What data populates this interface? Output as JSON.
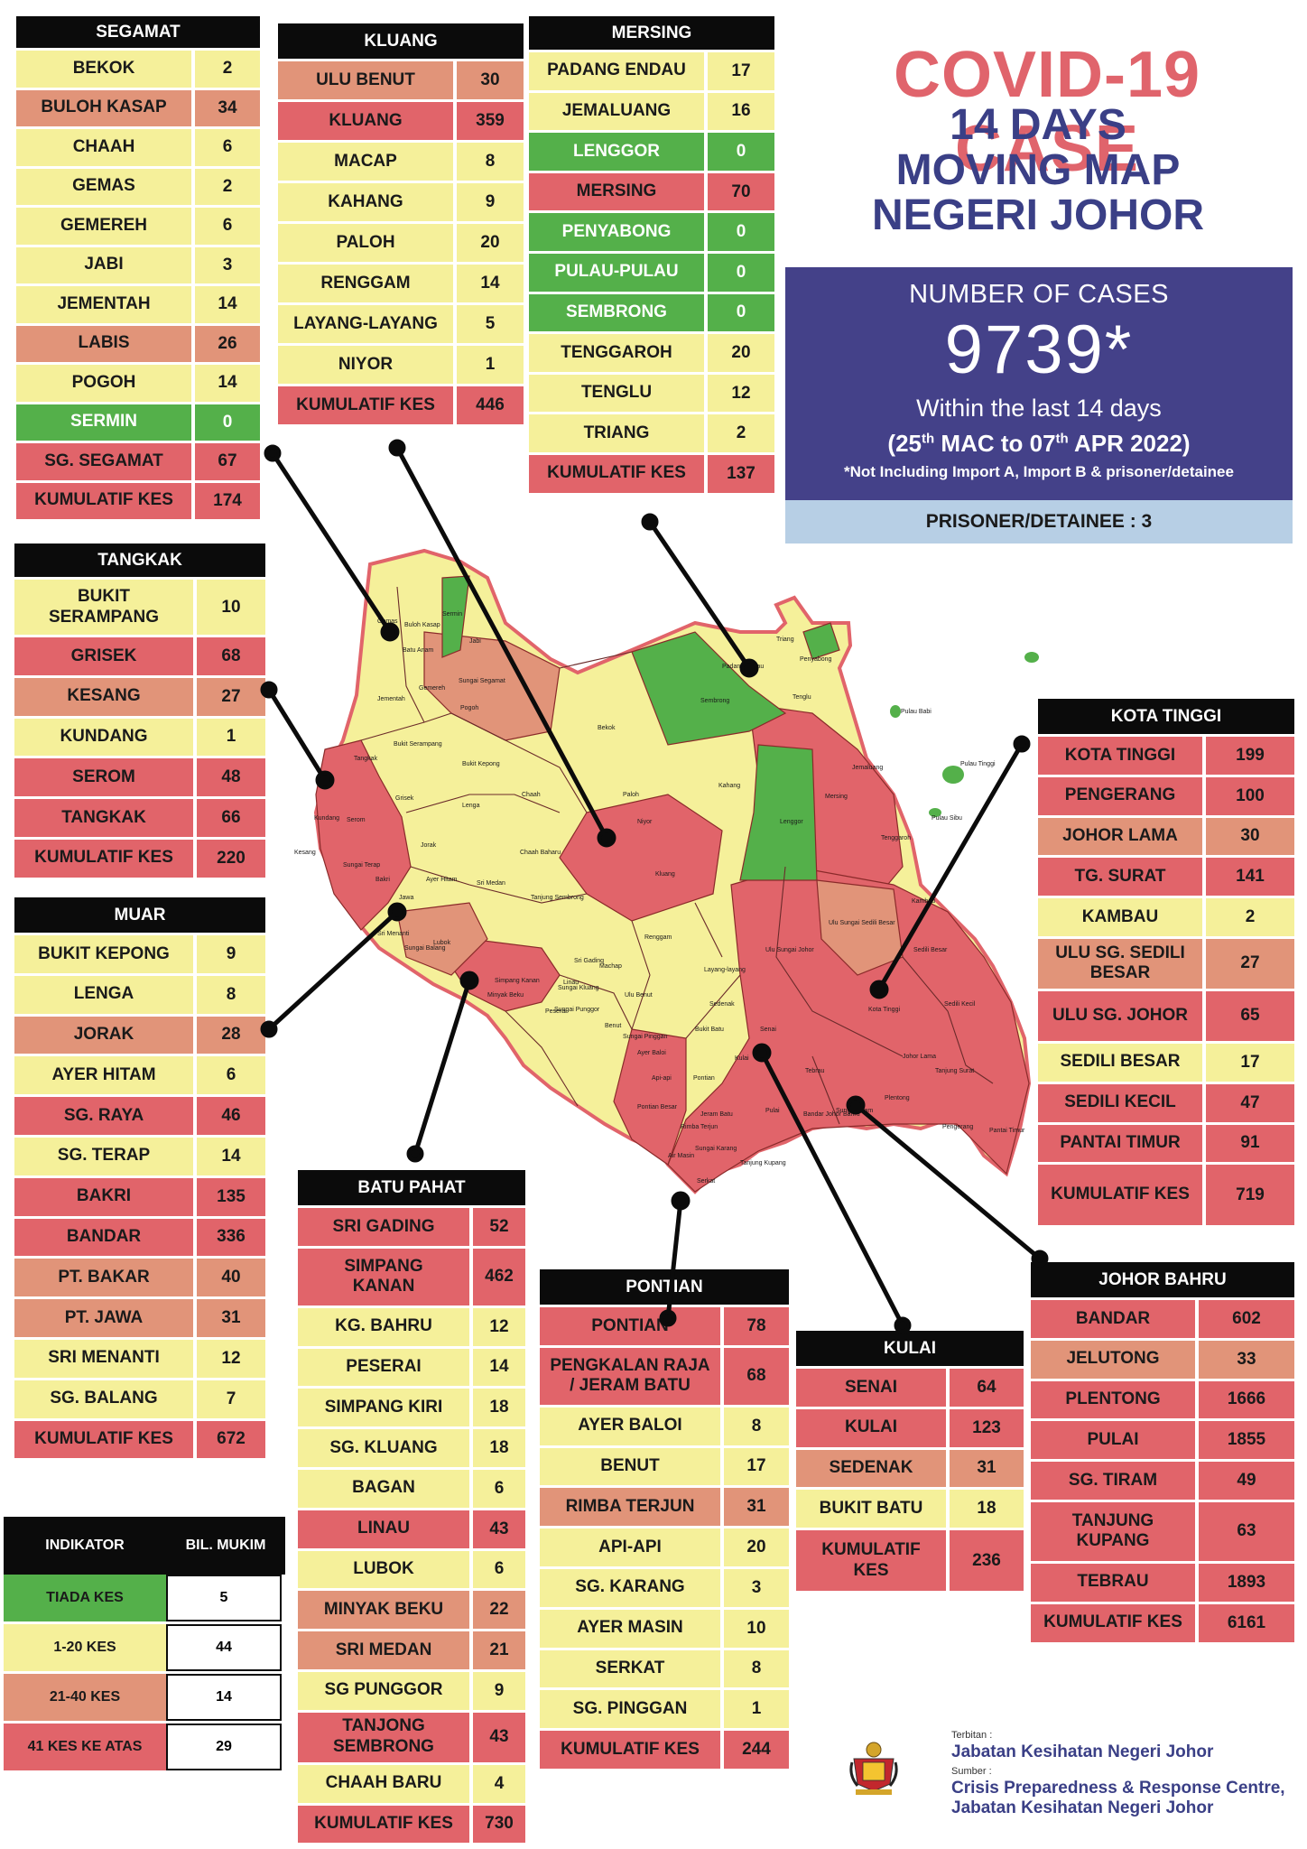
{
  "header": {
    "title": "COVID-19 CASE",
    "subtitle_lines": [
      "14 DAYS",
      "MOVING MAP",
      "NEGERI JOHOR"
    ]
  },
  "cases_box": {
    "label": "NUMBER OF CASES",
    "value": "9739*",
    "within": "Within the last 14 days",
    "range_start_day": "25",
    "range_start_sup": "th",
    "range_mid": " MAC to 07",
    "range_end_sup": "th",
    "range_end": " APR 2022)",
    "range_open": "(",
    "note": "*Not Including Import A, Import B & prisoner/detainee"
  },
  "prisoner": "PRISONER/DETAINEE : 3",
  "colors": {
    "green": "#54b04a",
    "yellow": "#f5f09a",
    "orange": "#e19479",
    "red": "#e1646a",
    "navy": "#444189",
    "title_red": "#e0646c"
  },
  "districts": {
    "segamat": {
      "name": "SEGAMAT",
      "rows": [
        {
          "n": "BEKOK",
          "v": "2",
          "c": "y"
        },
        {
          "n": "BULOH KASAP",
          "v": "34",
          "c": "o"
        },
        {
          "n": "CHAAH",
          "v": "6",
          "c": "y"
        },
        {
          "n": "GEMAS",
          "v": "2",
          "c": "y"
        },
        {
          "n": "GEMEREH",
          "v": "6",
          "c": "y"
        },
        {
          "n": "JABI",
          "v": "3",
          "c": "y"
        },
        {
          "n": "JEMENTAH",
          "v": "14",
          "c": "y"
        },
        {
          "n": "LABIS",
          "v": "26",
          "c": "o"
        },
        {
          "n": "POGOH",
          "v": "14",
          "c": "y"
        },
        {
          "n": "SERMIN",
          "v": "0",
          "c": "g"
        },
        {
          "n": "SG. SEGAMAT",
          "v": "67",
          "c": "r"
        },
        {
          "n": "KUMULATIF KES",
          "v": "174",
          "c": "r"
        }
      ]
    },
    "kluang": {
      "name": "KLUANG",
      "rows": [
        {
          "n": "ULU BENUT",
          "v": "30",
          "c": "o"
        },
        {
          "n": "KLUANG",
          "v": "359",
          "c": "r"
        },
        {
          "n": "MACAP",
          "v": "8",
          "c": "y"
        },
        {
          "n": "KAHANG",
          "v": "9",
          "c": "y"
        },
        {
          "n": "PALOH",
          "v": "20",
          "c": "y"
        },
        {
          "n": "RENGGAM",
          "v": "14",
          "c": "y"
        },
        {
          "n": "LAYANG-LAYANG",
          "v": "5",
          "c": "y"
        },
        {
          "n": "NIYOR",
          "v": "1",
          "c": "y"
        },
        {
          "n": "KUMULATIF KES",
          "v": "446",
          "c": "r"
        }
      ]
    },
    "mersing": {
      "name": "MERSING",
      "rows": [
        {
          "n": "PADANG ENDAU",
          "v": "17",
          "c": "y"
        },
        {
          "n": "JEMALUANG",
          "v": "16",
          "c": "y"
        },
        {
          "n": "LENGGOR",
          "v": "0",
          "c": "g"
        },
        {
          "n": "MERSING",
          "v": "70",
          "c": "r"
        },
        {
          "n": "PENYABONG",
          "v": "0",
          "c": "g"
        },
        {
          "n": "PULAU-PULAU",
          "v": "0",
          "c": "g"
        },
        {
          "n": "SEMBRONG",
          "v": "0",
          "c": "g"
        },
        {
          "n": "TENGGAROH",
          "v": "20",
          "c": "y"
        },
        {
          "n": "TENGLU",
          "v": "12",
          "c": "y"
        },
        {
          "n": "TRIANG",
          "v": "2",
          "c": "y"
        },
        {
          "n": "KUMULATIF KES",
          "v": "137",
          "c": "r"
        }
      ]
    },
    "tangkak": {
      "name": "TANGKAK",
      "rows": [
        {
          "n": "BUKIT\nSERAMPANG",
          "v": "10",
          "c": "y"
        },
        {
          "n": "GRISEK",
          "v": "68",
          "c": "r"
        },
        {
          "n": "KESANG",
          "v": "27",
          "c": "o"
        },
        {
          "n": "KUNDANG",
          "v": "1",
          "c": "y"
        },
        {
          "n": "SEROM",
          "v": "48",
          "c": "r"
        },
        {
          "n": "TANGKAK",
          "v": "66",
          "c": "r"
        },
        {
          "n": "KUMULATIF KES",
          "v": "220",
          "c": "r"
        }
      ]
    },
    "muar": {
      "name": "MUAR",
      "rows": [
        {
          "n": "BUKIT KEPONG",
          "v": "9",
          "c": "y"
        },
        {
          "n": "LENGA",
          "v": "8",
          "c": "y"
        },
        {
          "n": "JORAK",
          "v": "28",
          "c": "o"
        },
        {
          "n": "AYER HITAM",
          "v": "6",
          "c": "y"
        },
        {
          "n": "SG. RAYA",
          "v": "46",
          "c": "r"
        },
        {
          "n": "SG. TERAP",
          "v": "14",
          "c": "y"
        },
        {
          "n": "BAKRI",
          "v": "135",
          "c": "r"
        },
        {
          "n": "BANDAR",
          "v": "336",
          "c": "r"
        },
        {
          "n": "PT. BAKAR",
          "v": "40",
          "c": "o"
        },
        {
          "n": "PT. JAWA",
          "v": "31",
          "c": "o"
        },
        {
          "n": "SRI MENANTI",
          "v": "12",
          "c": "y"
        },
        {
          "n": "SG. BALANG",
          "v": "7",
          "c": "y"
        },
        {
          "n": "KUMULATIF KES",
          "v": "672",
          "c": "r"
        }
      ]
    },
    "kota_tinggi": {
      "name": "KOTA TINGGI",
      "rows": [
        {
          "n": "KOTA TINGGI",
          "v": "199",
          "c": "r"
        },
        {
          "n": "PENGERANG",
          "v": "100",
          "c": "r"
        },
        {
          "n": "JOHOR LAMA",
          "v": "30",
          "c": "o"
        },
        {
          "n": "TG. SURAT",
          "v": "141",
          "c": "r"
        },
        {
          "n": "KAMBAU",
          "v": "2",
          "c": "y"
        },
        {
          "n": "ULU SG. SEDILI\nBESAR",
          "v": "27",
          "c": "o"
        },
        {
          "n": "ULU  SG. JOHOR",
          "v": "65",
          "c": "r"
        },
        {
          "n": "SEDILI BESAR",
          "v": "17",
          "c": "y"
        },
        {
          "n": "SEDILI KECIL",
          "v": "47",
          "c": "r"
        },
        {
          "n": "PANTAI TIMUR",
          "v": "91",
          "c": "r"
        },
        {
          "n": "KUMULATIF KES",
          "v": "719",
          "c": "r"
        }
      ]
    },
    "batu_pahat": {
      "name": "BATU PAHAT",
      "rows": [
        {
          "n": "SRI GADING",
          "v": "52",
          "c": "r"
        },
        {
          "n": "SIMPANG\nKANAN",
          "v": "462",
          "c": "r"
        },
        {
          "n": "KG. BAHRU",
          "v": "12",
          "c": "y"
        },
        {
          "n": "PESERAI",
          "v": "14",
          "c": "y"
        },
        {
          "n": "SIMPANG KIRI",
          "v": "18",
          "c": "y"
        },
        {
          "n": "SG. KLUANG",
          "v": "18",
          "c": "y"
        },
        {
          "n": "BAGAN",
          "v": "6",
          "c": "y"
        },
        {
          "n": "LINAU",
          "v": "43",
          "c": "r"
        },
        {
          "n": "LUBOK",
          "v": "6",
          "c": "y"
        },
        {
          "n": "MINYAK BEKU",
          "v": "22",
          "c": "o"
        },
        {
          "n": "SRI MEDAN",
          "v": "21",
          "c": "o"
        },
        {
          "n": "SG PUNGGOR",
          "v": "9",
          "c": "y"
        },
        {
          "n": "TANJONG\nSEMBRONG",
          "v": "43",
          "c": "r"
        },
        {
          "n": "CHAAH BARU",
          "v": "4",
          "c": "y"
        },
        {
          "n": "KUMULATIF KES",
          "v": "730",
          "c": "r"
        }
      ]
    },
    "pontian": {
      "name": "PONTIAN",
      "rows": [
        {
          "n": "PONTIAN",
          "v": "78",
          "c": "r"
        },
        {
          "n": "PENGKALAN RAJA\n/ JERAM BATU",
          "v": "68",
          "c": "r"
        },
        {
          "n": "AYER BALOI",
          "v": "8",
          "c": "y"
        },
        {
          "n": "BENUT",
          "v": "17",
          "c": "y"
        },
        {
          "n": "RIMBA TERJUN",
          "v": "31",
          "c": "o"
        },
        {
          "n": "API-API",
          "v": "20",
          "c": "y"
        },
        {
          "n": "SG. KARANG",
          "v": "3",
          "c": "y"
        },
        {
          "n": "AYER MASIN",
          "v": "10",
          "c": "y"
        },
        {
          "n": "SERKAT",
          "v": "8",
          "c": "y"
        },
        {
          "n": "SG. PINGGAN",
          "v": "1",
          "c": "y"
        },
        {
          "n": "KUMULATIF KES",
          "v": "244",
          "c": "r"
        }
      ]
    },
    "kulai": {
      "name": "KULAI",
      "rows": [
        {
          "n": "SENAI",
          "v": "64",
          "c": "r"
        },
        {
          "n": "KULAI",
          "v": "123",
          "c": "r"
        },
        {
          "n": "SEDENAK",
          "v": "31",
          "c": "o"
        },
        {
          "n": "BUKIT BATU",
          "v": "18",
          "c": "y"
        },
        {
          "n": "KUMULATIF\nKES",
          "v": "236",
          "c": "r"
        }
      ]
    },
    "johor_bahru": {
      "name": "JOHOR BAHRU",
      "rows": [
        {
          "n": "BANDAR",
          "v": "602",
          "c": "r"
        },
        {
          "n": "JELUTONG",
          "v": "33",
          "c": "o"
        },
        {
          "n": "PLENTONG",
          "v": "1666",
          "c": "r"
        },
        {
          "n": "PULAI",
          "v": "1855",
          "c": "r"
        },
        {
          "n": "SG. TIRAM",
          "v": "49",
          "c": "r"
        },
        {
          "n": "TANJUNG\nKUPANG",
          "v": "63",
          "c": "r"
        },
        {
          "n": "TEBRAU",
          "v": "1893",
          "c": "r"
        },
        {
          "n": "KUMULATIF KES",
          "v": "6161",
          "c": "r"
        }
      ]
    }
  },
  "legend": {
    "header_indicator": "INDIKATOR",
    "header_count": "BIL. MUKIM",
    "rows": [
      {
        "n": "TIADA KES",
        "v": "5",
        "c": "g"
      },
      {
        "n": "1-20 KES",
        "v": "44",
        "c": "y"
      },
      {
        "n": "21-40 KES",
        "v": "14",
        "c": "o"
      },
      {
        "n": "41 KES KE ATAS",
        "v": "29",
        "c": "r"
      }
    ]
  },
  "footer": {
    "terbitan_label": "Terbitan :",
    "terbitan": "Jabatan Kesihatan Negeri Johor",
    "sumber_label": "Sumber :",
    "sumber_1": "Crisis Preparedness & Response Centre,",
    "sumber_2": "Jabatan Kesihatan Negeri Johor"
  },
  "map_labels": {
    "gemas": "Gemas",
    "buloh_kasap": "Buloh Kasap",
    "sermin": "Sermin",
    "jabi": "Jabi",
    "batu_anam": "Batu Anam",
    "sungai_segamat": "Sungai Segamat",
    "gemereh": "Gemereh",
    "jementah": "Jementah",
    "pogoh": "Pogoh",
    "bukit_serampang": "Bukit Serampang",
    "tangkak": "Tangkak",
    "grisek": "Grisek",
    "bukit_kepong": "Bukit Kepong",
    "lenga": "Lenga",
    "chaah": "Chaah",
    "bekok": "Bekok",
    "paloh": "Paloh",
    "niyor": "Niyor",
    "kluang": "Kluang",
    "kahang": "Kahang",
    "sembrong": "Sembrong",
    "lenggor": "Lenggor",
    "mersing": "Mersing",
    "jemaluang": "Jemaluang",
    "penyabong": "Penyabong",
    "triang": "Triang",
    "tenglu": "Tenglu",
    "padang_endau": "Padang Endau",
    "pulau_babi": "Pulau Babi",
    "pulau_tinggi": "Pulau Tinggi",
    "pulau_sibu": "Pulau Sibu",
    "tenggaroh": "Tenggaroh",
    "kambau": "Kambau",
    "kundang": "Kundang",
    "serom": "Serom",
    "kesang": "Kesang",
    "jorak": "Jorak",
    "sungai_terap": "Sungai Terap",
    "bakri": "Bakri",
    "ayer_hitam": "Ayer Hitam",
    "sri_medan": "Sri Medan",
    "chaah_baharu": "Chaah Baharu",
    "tanjung_sembrong": "Tanjung Sembrong",
    "renggam": "Renggam",
    "ulu_sungai_johor": "Ulu Sungai Johor",
    "ulu_sungai_sedili_besar": "Ulu Sungai Sedili Besar",
    "sedili_besar": "Sedili Besar",
    "kota_tinggi": "Kota Tinggi",
    "sedili_kecil": "Sedili Kecil",
    "johor_lama": "Johor Lama",
    "tanjung_surat": "Tanjung Surat",
    "pengerang": "Pengerang",
    "pantai_timur": "Pantai Timur",
    "sungai_tiram": "Sungai Tiram",
    "plentong": "Plentong",
    "tebrau": "Tebrau",
    "bandar_johor_bahru": "Bandar Johor Bahru",
    "pulai": "Pulai",
    "kulai": "Kulai",
    "senai": "Senai",
    "sedenak": "Sedenak",
    "bukit_batu": "Bukit Batu",
    "layang_layang": "Layang-layang",
    "machap": "Machap",
    "ulu_benut": "Ulu Benut",
    "benut": "Benut",
    "sungai_pinggan": "Sungai Pinggan",
    "ayer_baloi": "Ayer Baloi",
    "api_api": "Api-api",
    "pontian": "Pontian",
    "pontian_besar": "Pontian Besar",
    "jeram_batu": "Jeram Batu",
    "rimba_terjun": "Rimba Terjun",
    "sungai_karang": "Sungai Karang",
    "air_masin": "Air Masin",
    "serkat": "Serkat",
    "tanjung_kupang": "Tanjung Kupang",
    "sri_gading": "Sri Gading",
    "minyak_beku": "Minyak Beku",
    "simpang_kanan": "Simpang Kanan",
    "linau": "Linau",
    "peserai": "Peserai",
    "sungai_punggor": "Sungai Punggor",
    "sungai_kluang": "Sungai Kluang",
    "lubok": "Lubok",
    "sungai_balang": "Sungai Balang",
    "sri_menanti": "Sri Menanti",
    "jawa": "Jawa"
  }
}
